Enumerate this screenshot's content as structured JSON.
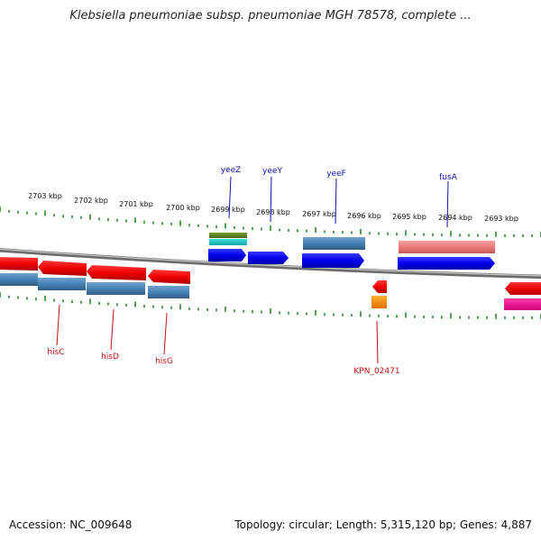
{
  "title": "Klebsiella pneumoniae subsp. pneumoniae MGH 78578, complete ...",
  "footer": {
    "accession": "Accession: NC_009648",
    "summary": "Topology: circular; Length: 5,315,120 bp; Genes: 4,887"
  },
  "colors": {
    "backbone": "#8a8a8a",
    "ticks": "#1e7a1e",
    "reverse_gene": "#ee1111",
    "forward_gene": "#1111ee",
    "steelblue": "#4682b4",
    "label_top": "#1010b0",
    "label_bottom": "#c01010"
  },
  "scale_labels": [
    "2703 kbp",
    "2702 kbp",
    "2701 kbp",
    "2700 kbp",
    "2699 kbp",
    "2698 kbp",
    "2697 kbp",
    "2696 kbp",
    "2695 kbp",
    "2694 kbp",
    "2693 kbp"
  ],
  "gene_labels_top": [
    "yeeZ",
    "yeeY",
    "yeeF",
    "fusA"
  ],
  "gene_labels_bottom": [
    "hisC",
    "hisD",
    "hisG",
    "KPN_02471"
  ]
}
